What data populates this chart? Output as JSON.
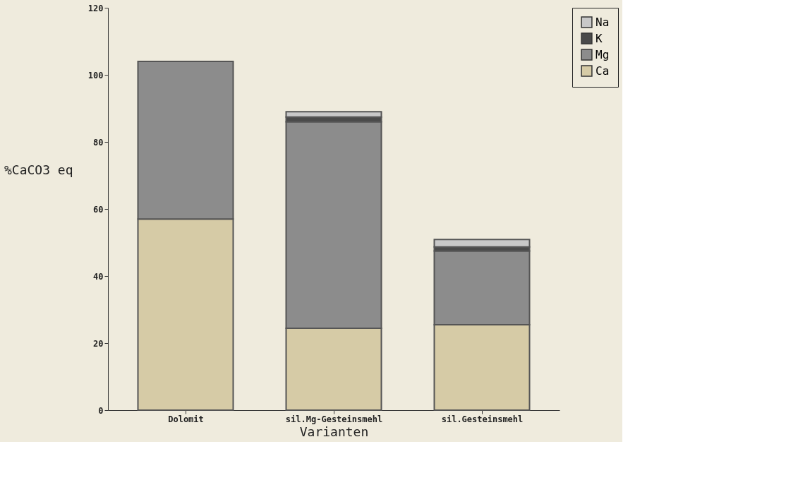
{
  "chart_data": {
    "type": "bar",
    "stacked": true,
    "xlabel": "Varianten",
    "ylabel": "%CaCO3 eq",
    "categories": [
      "Dolomit",
      "sil.Mg-Gesteinsmehl",
      "sil.Gesteinsmehl"
    ],
    "series": [
      {
        "name": "Ca",
        "color": "#d6cba6",
        "values": [
          57,
          24.4,
          25.5
        ]
      },
      {
        "name": "Mg",
        "color": "#8c8c8c",
        "values": [
          47,
          61.6,
          22
        ]
      },
      {
        "name": "K",
        "color": "#4a4a4a",
        "values": [
          0,
          1.4,
          1.2
        ]
      },
      {
        "name": "Na",
        "color": "#c8c8c8",
        "values": [
          0,
          1.6,
          2.2
        ]
      }
    ],
    "ylim": [
      0,
      120
    ],
    "yticks": [
      0,
      20,
      40,
      60,
      80,
      100,
      120
    ],
    "grid": false,
    "legend": "right"
  }
}
